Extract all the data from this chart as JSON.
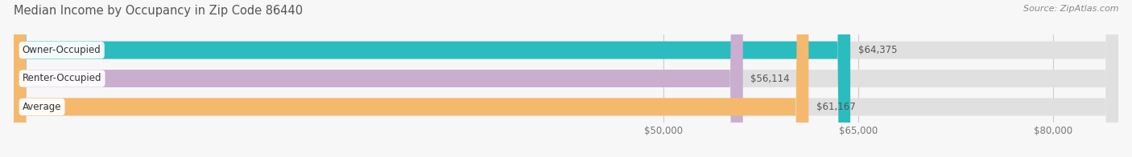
{
  "title": "Median Income by Occupancy in Zip Code 86440",
  "source": "Source: ZipAtlas.com",
  "categories": [
    "Owner-Occupied",
    "Renter-Occupied",
    "Average"
  ],
  "values": [
    64375,
    56114,
    61167
  ],
  "bar_colors": [
    "#2bbcbf",
    "#c9aed0",
    "#f5b96e"
  ],
  "bar_bg_color": "#e0e0e0",
  "labels": [
    "$64,375",
    "$56,114",
    "$61,167"
  ],
  "xmin": 0,
  "xmax": 85000,
  "xticks": [
    50000,
    65000,
    80000
  ],
  "xtick_labels": [
    "$50,000",
    "$65,000",
    "$80,000"
  ],
  "title_fontsize": 10.5,
  "source_fontsize": 8,
  "label_fontsize": 8.5,
  "bar_height": 0.62,
  "figsize": [
    14.06,
    1.96
  ],
  "dpi": 100
}
